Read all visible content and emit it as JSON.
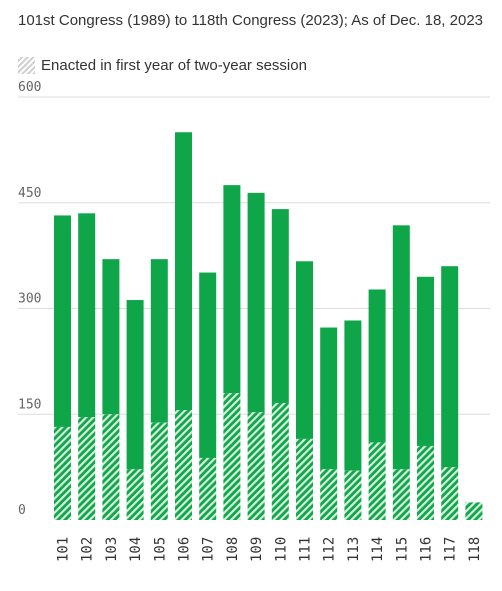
{
  "subtitle": "101st Congress (1989) to 118th Congress (2023); As of Dec. 18, 2023",
  "legend": {
    "hatched_label": "Enacted in first year of two-year session"
  },
  "colors": {
    "bar": "#0fa64a",
    "hatch_light": "#d4eedc",
    "grid": "#dedede"
  },
  "chart_data": {
    "type": "bar",
    "stacked": true,
    "categories": [
      "101",
      "102",
      "103",
      "104",
      "105",
      "106",
      "107",
      "108",
      "109",
      "110",
      "111",
      "112",
      "113",
      "114",
      "115",
      "116",
      "117",
      "118"
    ],
    "series": [
      {
        "name": "Enacted in first year of two-year session",
        "pattern": "hatched",
        "values": [
          132,
          146,
          150,
          72,
          138,
          156,
          88,
          180,
          153,
          166,
          115,
          72,
          70,
          110,
          72,
          105,
          75,
          25
        ]
      },
      {
        "pattern": "solid",
        "values": [
          300,
          289,
          220,
          240,
          232,
          394,
          263,
          295,
          311,
          275,
          252,
          201,
          213,
          217,
          346,
          240,
          285,
          0
        ]
      }
    ],
    "totals": [
      432,
      435,
      370,
      312,
      370,
      550,
      351,
      475,
      464,
      441,
      367,
      273,
      283,
      327,
      418,
      345,
      360,
      25
    ],
    "yticks": [
      0,
      150,
      300,
      450,
      600
    ],
    "ylim": [
      0,
      600
    ],
    "grid": true,
    "legend_position": "top-left"
  }
}
